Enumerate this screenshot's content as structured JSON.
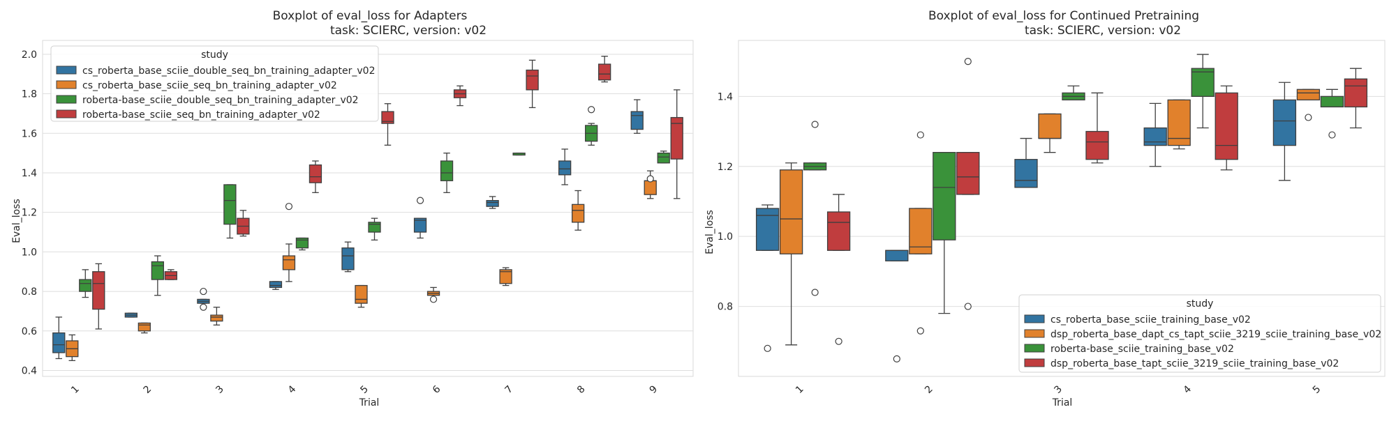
{
  "chart_data": [
    {
      "type": "boxplot",
      "title": "Boxplot of eval_loss for Adapters",
      "subtitle": "task: SCIERC, version: v02",
      "xlabel": "Trial",
      "ylabel": "Eval_loss",
      "ylim": [
        0.37,
        2.07
      ],
      "yticks": [
        "0.4",
        "0.6",
        "0.8",
        "1.0",
        "1.2",
        "1.4",
        "1.6",
        "1.8",
        "2.0"
      ],
      "categories": [
        "1",
        "2",
        "3",
        "4",
        "5",
        "6",
        "7",
        "8",
        "9"
      ],
      "grid": true,
      "legend": {
        "title": "study",
        "position": "top-left"
      },
      "series": [
        {
          "name": "cs_roberta_base_sciie_double_seq_bn_training_adapter_v02",
          "color": "#3274a1",
          "boxes": [
            {
              "min": 0.46,
              "q1": 0.49,
              "median": 0.53,
              "q3": 0.59,
              "max": 0.67,
              "outliers": []
            },
            {
              "min": 0.67,
              "q1": 0.67,
              "median": 0.68,
              "q3": 0.69,
              "max": 0.69,
              "outliers": []
            },
            {
              "min": 0.74,
              "q1": 0.74,
              "median": 0.75,
              "q3": 0.76,
              "max": 0.76,
              "outliers": [
                0.72,
                0.8
              ]
            },
            {
              "min": 0.81,
              "q1": 0.82,
              "median": 0.83,
              "q3": 0.85,
              "max": 0.85,
              "outliers": []
            },
            {
              "min": 0.9,
              "q1": 0.91,
              "median": 0.98,
              "q3": 1.02,
              "max": 1.05,
              "outliers": []
            },
            {
              "min": 1.07,
              "q1": 1.1,
              "median": 1.16,
              "q3": 1.17,
              "max": 1.17,
              "outliers": [
                1.26
              ]
            },
            {
              "min": 1.22,
              "q1": 1.23,
              "median": 1.25,
              "q3": 1.26,
              "max": 1.28,
              "outliers": []
            },
            {
              "min": 1.34,
              "q1": 1.39,
              "median": 1.42,
              "q3": 1.46,
              "max": 1.52,
              "outliers": []
            },
            {
              "min": 1.6,
              "q1": 1.62,
              "median": 1.69,
              "q3": 1.71,
              "max": 1.77,
              "outliers": []
            }
          ]
        },
        {
          "name": "cs_roberta_base_sciie_seq_bn_training_adapter_v02",
          "color": "#e1812c",
          "boxes": [
            {
              "min": 0.45,
              "q1": 0.47,
              "median": 0.51,
              "q3": 0.55,
              "max": 0.58,
              "outliers": []
            },
            {
              "min": 0.59,
              "q1": 0.6,
              "median": 0.63,
              "q3": 0.64,
              "max": 0.64,
              "outliers": []
            },
            {
              "min": 0.63,
              "q1": 0.65,
              "median": 0.67,
              "q3": 0.68,
              "max": 0.72,
              "outliers": []
            },
            {
              "min": 0.85,
              "q1": 0.91,
              "median": 0.96,
              "q3": 0.98,
              "max": 1.04,
              "outliers": [
                1.23
              ]
            },
            {
              "min": 0.72,
              "q1": 0.74,
              "median": 0.76,
              "q3": 0.83,
              "max": 0.83,
              "outliers": []
            },
            {
              "min": 0.78,
              "q1": 0.78,
              "median": 0.79,
              "q3": 0.8,
              "max": 0.82,
              "outliers": [
                0.76
              ]
            },
            {
              "min": 0.83,
              "q1": 0.84,
              "median": 0.9,
              "q3": 0.91,
              "max": 0.92,
              "outliers": []
            },
            {
              "min": 1.11,
              "q1": 1.15,
              "median": 1.21,
              "q3": 1.24,
              "max": 1.31,
              "outliers": []
            },
            {
              "min": 1.27,
              "q1": 1.29,
              "median": 1.36,
              "q3": 1.36,
              "max": 1.41,
              "outliers": [
                1.37
              ]
            }
          ]
        },
        {
          "name": "roberta-base_sciie_double_seq_bn_training_adapter_v02",
          "color": "#3a923a",
          "boxes": [
            {
              "min": 0.77,
              "q1": 0.8,
              "median": 0.84,
              "q3": 0.86,
              "max": 0.91,
              "outliers": []
            },
            {
              "min": 0.78,
              "q1": 0.86,
              "median": 0.93,
              "q3": 0.95,
              "max": 0.98,
              "outliers": []
            },
            {
              "min": 1.07,
              "q1": 1.14,
              "median": 1.26,
              "q3": 1.34,
              "max": 1.34,
              "outliers": []
            },
            {
              "min": 1.01,
              "q1": 1.02,
              "median": 1.06,
              "q3": 1.07,
              "max": 1.07,
              "outliers": []
            },
            {
              "min": 1.06,
              "q1": 1.1,
              "median": 1.14,
              "q3": 1.15,
              "max": 1.17,
              "outliers": []
            },
            {
              "min": 1.3,
              "q1": 1.36,
              "median": 1.4,
              "q3": 1.46,
              "max": 1.5,
              "outliers": []
            },
            {
              "min": 1.49,
              "q1": 1.49,
              "median": 1.5,
              "q3": 1.5,
              "max": 1.5,
              "outliers": []
            },
            {
              "min": 1.54,
              "q1": 1.56,
              "median": 1.6,
              "q3": 1.64,
              "max": 1.65,
              "outliers": [
                1.72
              ]
            },
            {
              "min": 1.45,
              "q1": 1.45,
              "median": 1.48,
              "q3": 1.5,
              "max": 1.51,
              "outliers": []
            }
          ]
        },
        {
          "name": "roberta-base_sciie_seq_bn_training_adapter_v02",
          "color": "#c03d3e",
          "boxes": [
            {
              "min": 0.61,
              "q1": 0.71,
              "median": 0.84,
              "q3": 0.9,
              "max": 0.94,
              "outliers": []
            },
            {
              "min": 0.86,
              "q1": 0.86,
              "median": 0.88,
              "q3": 0.9,
              "max": 0.91,
              "outliers": []
            },
            {
              "min": 1.08,
              "q1": 1.09,
              "median": 1.13,
              "q3": 1.17,
              "max": 1.21,
              "outliers": []
            },
            {
              "min": 1.3,
              "q1": 1.35,
              "median": 1.38,
              "q3": 1.44,
              "max": 1.46,
              "outliers": []
            },
            {
              "min": 1.54,
              "q1": 1.65,
              "median": 1.66,
              "q3": 1.71,
              "max": 1.75,
              "outliers": []
            },
            {
              "min": 1.74,
              "q1": 1.78,
              "median": 1.8,
              "q3": 1.82,
              "max": 1.84,
              "outliers": []
            },
            {
              "min": 1.73,
              "q1": 1.82,
              "median": 1.89,
              "q3": 1.92,
              "max": 1.97,
              "outliers": []
            },
            {
              "min": 1.86,
              "q1": 1.87,
              "median": 1.9,
              "q3": 1.95,
              "max": 1.99,
              "outliers": []
            },
            {
              "min": 1.27,
              "q1": 1.47,
              "median": 1.65,
              "q3": 1.68,
              "max": 1.82,
              "outliers": []
            }
          ]
        }
      ]
    },
    {
      "type": "boxplot",
      "title": "Boxplot of eval_loss for Continued Pretraining",
      "subtitle": "task: SCIERC, version: v02",
      "xlabel": "Trial",
      "ylabel": "Eval_loss",
      "ylim": [
        0.6,
        1.56
      ],
      "yticks": [
        "0.8",
        "1.0",
        "1.2",
        "1.4"
      ],
      "categories": [
        "1",
        "2",
        "3",
        "4",
        "5"
      ],
      "grid": true,
      "legend": {
        "title": "study",
        "position": "bottom-right"
      },
      "series": [
        {
          "name": "cs_roberta_base_sciie_training_base_v02",
          "color": "#3274a1",
          "boxes": [
            {
              "min": 0.96,
              "q1": 0.96,
              "median": 1.06,
              "q3": 1.08,
              "max": 1.09,
              "outliers": [
                0.68
              ]
            },
            {
              "min": 0.93,
              "q1": 0.93,
              "median": 0.96,
              "q3": 0.96,
              "max": 0.96,
              "outliers": [
                0.65
              ]
            },
            {
              "min": 1.14,
              "q1": 1.14,
              "median": 1.16,
              "q3": 1.22,
              "max": 1.28,
              "outliers": []
            },
            {
              "min": 1.2,
              "q1": 1.26,
              "median": 1.27,
              "q3": 1.31,
              "max": 1.38,
              "outliers": []
            },
            {
              "min": 1.16,
              "q1": 1.26,
              "median": 1.33,
              "q3": 1.39,
              "max": 1.44,
              "outliers": []
            }
          ]
        },
        {
          "name": "dsp_roberta_base_dapt_cs_tapt_sciie_3219_sciie_training_base_v02",
          "color": "#e1812c",
          "boxes": [
            {
              "min": 0.69,
              "q1": 0.95,
              "median": 1.05,
              "q3": 1.19,
              "max": 1.21,
              "outliers": []
            },
            {
              "min": 0.95,
              "q1": 0.95,
              "median": 0.97,
              "q3": 1.08,
              "max": 1.08,
              "outliers": [
                0.73,
                1.29
              ]
            },
            {
              "min": 1.24,
              "q1": 1.28,
              "median": 1.28,
              "q3": 1.35,
              "max": 1.35,
              "outliers": []
            },
            {
              "min": 1.25,
              "q1": 1.26,
              "median": 1.28,
              "q3": 1.39,
              "max": 1.39,
              "outliers": []
            },
            {
              "min": 1.39,
              "q1": 1.39,
              "median": 1.41,
              "q3": 1.42,
              "max": 1.42,
              "outliers": [
                1.34
              ]
            }
          ]
        },
        {
          "name": "roberta-base_sciie_training_base_v02",
          "color": "#3a923a",
          "boxes": [
            {
              "min": 1.19,
              "q1": 1.19,
              "median": 1.2,
              "q3": 1.21,
              "max": 1.21,
              "outliers": [
                0.84,
                1.32
              ]
            },
            {
              "min": 0.78,
              "q1": 0.99,
              "median": 1.14,
              "q3": 1.24,
              "max": 1.24,
              "outliers": []
            },
            {
              "min": 1.39,
              "q1": 1.39,
              "median": 1.4,
              "q3": 1.41,
              "max": 1.43,
              "outliers": []
            },
            {
              "min": 1.31,
              "q1": 1.4,
              "median": 1.47,
              "q3": 1.48,
              "max": 1.52,
              "outliers": []
            },
            {
              "min": 1.37,
              "q1": 1.37,
              "median": 1.37,
              "q3": 1.4,
              "max": 1.42,
              "outliers": [
                1.29
              ]
            }
          ]
        },
        {
          "name": "dsp_roberta_base_tapt_sciie_3219_sciie_training_base_v02",
          "color": "#c03d3e",
          "boxes": [
            {
              "min": 0.96,
              "q1": 0.96,
              "median": 1.04,
              "q3": 1.07,
              "max": 1.12,
              "outliers": [
                0.7
              ]
            },
            {
              "min": 1.12,
              "q1": 1.12,
              "median": 1.17,
              "q3": 1.24,
              "max": 1.24,
              "outliers": [
                0.8,
                1.5
              ]
            },
            {
              "min": 1.21,
              "q1": 1.22,
              "median": 1.27,
              "q3": 1.3,
              "max": 1.41,
              "outliers": []
            },
            {
              "min": 1.19,
              "q1": 1.22,
              "median": 1.26,
              "q3": 1.41,
              "max": 1.43,
              "outliers": []
            },
            {
              "min": 1.31,
              "q1": 1.37,
              "median": 1.43,
              "q3": 1.45,
              "max": 1.48,
              "outliers": []
            }
          ]
        }
      ]
    }
  ]
}
